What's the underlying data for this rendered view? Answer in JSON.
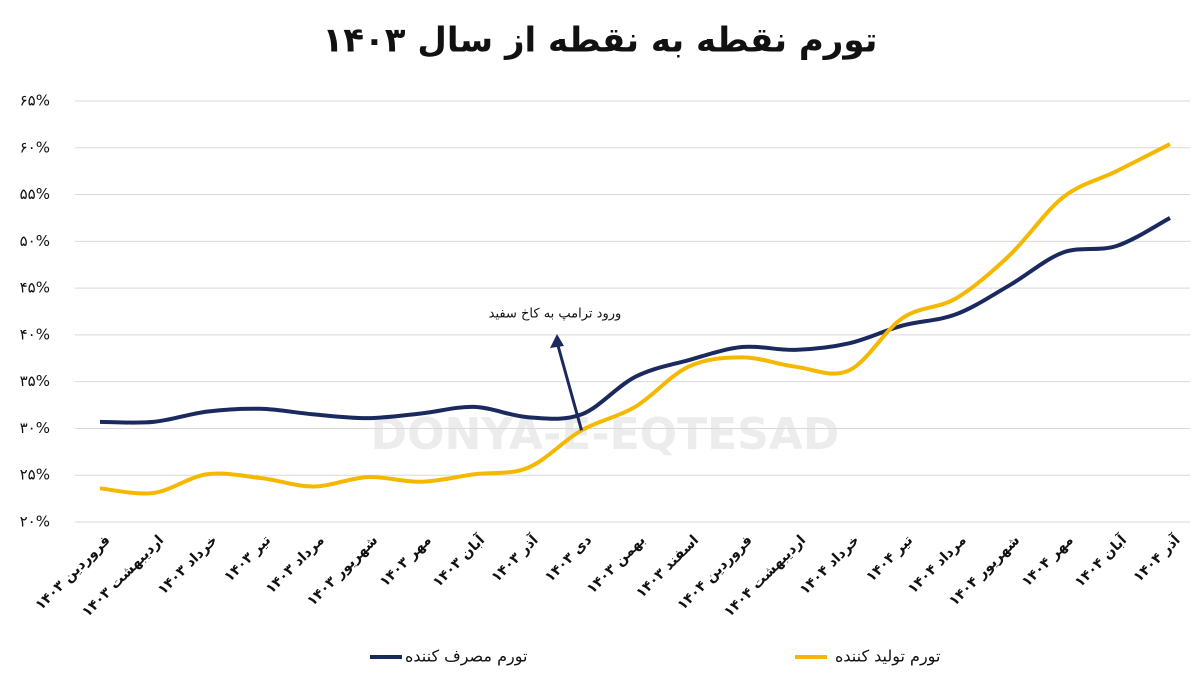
{
  "chart_data": {
    "type": "line",
    "title": "تورم نقطه به نقطه از سال ۱۴۰۳",
    "watermark": "DONYA-E-EQTESAD",
    "categories": [
      "فروردین ۱۴۰۳",
      "اردیبهشت ۱۴۰۳",
      "خرداد ۱۴۰۳",
      "تیر ۱۴۰۳",
      "مرداد ۱۴۰۳",
      "شهریور ۱۴۰۳",
      "مهر ۱۴۰۳",
      "آبان ۱۴۰۳",
      "آذر ۱۴۰۳",
      "دی ۱۴۰۳",
      "بهمن ۱۴۰۳",
      "اسفند ۱۴۰۳",
      "فروردین ۱۴۰۴",
      "اردیبهشت ۱۴۰۴",
      "خرداد ۱۴۰۴",
      "تیر ۱۴۰۴",
      "مرداد ۱۴۰۴",
      "شهریور ۱۴۰۴",
      "مهر ۱۴۰۴",
      "آبان ۱۴۰۴",
      "آذر ۱۴۰۴"
    ],
    "series": [
      {
        "name": "تورم مصرف کننده",
        "color": "#1b2a5e",
        "values": [
          30.7,
          30.7,
          31.8,
          32.1,
          31.5,
          31.1,
          31.6,
          32.3,
          31.2,
          31.5,
          35.5,
          37.3,
          38.7,
          38.4,
          39.1,
          41.0,
          42.2,
          45.3,
          48.8,
          49.5,
          52.5
        ]
      },
      {
        "name": "تورم تولید کننده",
        "color": "#f5b800",
        "values": [
          23.6,
          23.1,
          25.1,
          24.7,
          23.8,
          24.8,
          24.3,
          25.1,
          25.8,
          29.8,
          32.3,
          36.6,
          37.6,
          36.6,
          36.2,
          41.8,
          43.9,
          48.5,
          54.7,
          57.5,
          60.4
        ]
      }
    ],
    "annotation": {
      "text": "ورود ترامپ به کاخ سفید",
      "category_index": 9
    },
    "ylim": [
      20,
      65
    ],
    "yticks": [
      {
        "value": 20,
        "label": "۲۰%"
      },
      {
        "value": 25,
        "label": "۲۵%"
      },
      {
        "value": 30,
        "label": "۳۰%"
      },
      {
        "value": 35,
        "label": "۳۵%"
      },
      {
        "value": 40,
        "label": "۴۰%"
      },
      {
        "value": 45,
        "label": "۴۵%"
      },
      {
        "value": 50,
        "label": "۵۰%"
      },
      {
        "value": 55,
        "label": "۵۵%"
      },
      {
        "value": 60,
        "label": "۶۰%"
      },
      {
        "value": 65,
        "label": "۶۵%"
      }
    ],
    "grid": true
  }
}
